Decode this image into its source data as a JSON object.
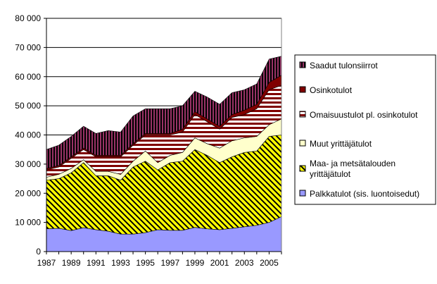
{
  "chart_data": {
    "type": "area",
    "stacked": true,
    "x": [
      1987,
      1988,
      1989,
      1990,
      1991,
      1992,
      1993,
      1994,
      1995,
      1996,
      1997,
      1998,
      1999,
      2000,
      2001,
      2002,
      2003,
      2004,
      2005,
      2006
    ],
    "x_tick_labels": [
      "1987",
      "1989",
      "1991",
      "1993",
      "1995",
      "1997",
      "1999",
      "2001",
      "2003",
      "2005"
    ],
    "y_tick_labels": [
      "0",
      "10 000",
      "20 000",
      "30 000",
      "40 000",
      "50 000",
      "60 000",
      "70 000",
      "80 000"
    ],
    "ylim": [
      0,
      80000
    ],
    "grid": true,
    "legend_placement": "right",
    "series": [
      {
        "name": "Palkkatulot (sis. luontoisedut)",
        "color": "#9999ff",
        "pattern": "solid",
        "values": [
          7800,
          8000,
          7200,
          8200,
          7500,
          7000,
          6000,
          6000,
          6500,
          7500,
          7300,
          7300,
          8300,
          7800,
          7500,
          8000,
          8500,
          9000,
          10000,
          12000
        ]
      },
      {
        "name": "Maa- ja metsätalouden yrittäjätulot",
        "color": "#ffff00",
        "pattern": "diagonal",
        "values": [
          16700,
          17000,
          19800,
          22300,
          18500,
          19000,
          18500,
          23000,
          24500,
          20500,
          23200,
          23700,
          26700,
          25200,
          23000,
          24500,
          25500,
          25500,
          29500,
          28000
        ]
      },
      {
        "name": "Muut yrittäjätulot",
        "color": "#ffffcc",
        "pattern": "solid",
        "values": [
          1000,
          1500,
          1500,
          1000,
          1500,
          1500,
          2000,
          2000,
          3500,
          2500,
          2500,
          3000,
          4000,
          4000,
          5000,
          5500,
          5000,
          5000,
          4000,
          5500
        ]
      },
      {
        "name": "Omaisuustulot pl. osinkotulot",
        "color": "#800000",
        "pattern": "horizontal",
        "values": [
          2500,
          2500,
          3500,
          3500,
          5000,
          5000,
          6000,
          5500,
          5500,
          9500,
          7000,
          7000,
          8000,
          7500,
          6500,
          8000,
          8000,
          9500,
          12000,
          11500
        ]
      },
      {
        "name": "Osinkotulot",
        "color": "#800000",
        "pattern": "solid",
        "values": [
          500,
          500,
          500,
          500,
          500,
          500,
          500,
          500,
          500,
          500,
          500,
          1000,
          1000,
          1000,
          1000,
          1000,
          1500,
          1500,
          2500,
          3500
        ]
      },
      {
        "name": "Saadut tulonsiirrot",
        "color": "#993366",
        "pattern": "vertical",
        "values": [
          6500,
          7000,
          7000,
          7500,
          7500,
          8500,
          8000,
          9500,
          8500,
          8500,
          8500,
          8000,
          7000,
          7500,
          7500,
          7500,
          7000,
          7000,
          8000,
          6500
        ]
      }
    ]
  }
}
